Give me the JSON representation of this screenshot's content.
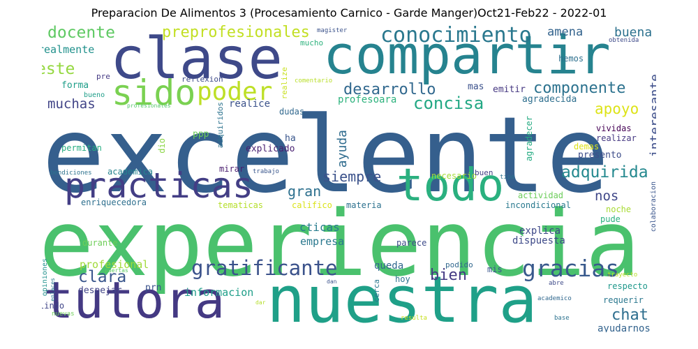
{
  "title": "Preparacion De Alimentos 3 (Procesamiento Carnico - Garde Manger)Oct21-Feb22 - 2022-01",
  "words": [
    {
      "text": "excelente",
      "color": "#355f8d"
    },
    {
      "text": "experiencia",
      "color": "#4ac16d"
    },
    {
      "text": "nuestra",
      "color": "#1fa088"
    },
    {
      "text": "compartir",
      "color": "#26838f"
    },
    {
      "text": "clase",
      "color": "#3e4989"
    },
    {
      "text": "tutora",
      "color": "#443983"
    },
    {
      "text": "todo",
      "color": "#2ab07f"
    },
    {
      "text": "practicas",
      "color": "#433e85"
    },
    {
      "text": "sido",
      "color": "#7ad151"
    },
    {
      "text": "poder",
      "color": "#bddf26"
    },
    {
      "text": "conocimiento",
      "color": "#2a788e"
    },
    {
      "text": "gratificante",
      "color": "#3b528b"
    },
    {
      "text": "gracias",
      "color": "#38598c"
    },
    {
      "text": "desarrollo",
      "color": "#31688e"
    },
    {
      "text": "componente",
      "color": "#2c728e"
    },
    {
      "text": "concisa",
      "color": "#22a884"
    },
    {
      "text": "adquirida",
      "color": "#23888e"
    },
    {
      "text": "siempre",
      "color": "#3b528b"
    },
    {
      "text": "apoyo",
      "color": "#dde318"
    },
    {
      "text": "clara",
      "color": "#39568c"
    },
    {
      "text": "bien",
      "color": "#443a83"
    },
    {
      "text": "chat",
      "color": "#2e6e8e"
    },
    {
      "text": "docente",
      "color": "#5ec962"
    },
    {
      "text": "este",
      "color": "#95d840"
    },
    {
      "text": "preprofesionales",
      "color": "#c2df23"
    },
    {
      "text": "muchas",
      "color": "#414487"
    },
    {
      "text": "amena",
      "color": "#33638d"
    },
    {
      "text": "buena",
      "color": "#2c718e"
    },
    {
      "text": "gran",
      "color": "#2d708e"
    },
    {
      "text": "nos",
      "color": "#3f4788"
    },
    {
      "text": "realmente",
      "color": "#21918c"
    },
    {
      "text": "ayuda",
      "color": "#2f6c8e"
    },
    {
      "text": "interesante",
      "color": "#3d4e8a"
    },
    {
      "text": "profesional",
      "color": "#a0da39"
    },
    {
      "text": "informacion",
      "color": "#1f9e89"
    },
    {
      "text": "empresa",
      "color": "#2a788e"
    },
    {
      "text": "cticas",
      "color": "#287d8e"
    },
    {
      "text": "queda",
      "color": "#31688e"
    },
    {
      "text": "ayudarnos",
      "color": "#33638d"
    },
    {
      "text": "explica",
      "color": "#3e4989"
    },
    {
      "text": "dispuesta",
      "color": "#3e4a89"
    },
    {
      "text": "forma",
      "color": "#1f9e89"
    },
    {
      "text": "realice",
      "color": "#3b528b"
    },
    {
      "text": "profesoara",
      "color": "#2db27d"
    },
    {
      "text": "emitir",
      "color": "#453781"
    },
    {
      "text": "agradecida",
      "color": "#2e6f8e"
    },
    {
      "text": "mas",
      "color": "#3b518b"
    },
    {
      "text": "presento",
      "color": "#3d4d8a"
    },
    {
      "text": "explicado",
      "color": "#482071"
    },
    {
      "text": "academica",
      "color": "#25838e"
    },
    {
      "text": "enriquecedora",
      "color": "#2e6f8e"
    },
    {
      "text": "permitan",
      "color": "#26ad81"
    },
    {
      "text": "mirar",
      "color": "#481b6d"
    },
    {
      "text": "materia",
      "color": "#2c718e"
    },
    {
      "text": "necesario",
      "color": "#a5db36"
    },
    {
      "text": "actividad",
      "color": "#6ccd5a"
    },
    {
      "text": "incondicional",
      "color": "#29798e"
    },
    {
      "text": "tematicas",
      "color": "#b5de2b"
    },
    {
      "text": "califico",
      "color": "#dae319"
    },
    {
      "text": "durante",
      "color": "#6ece58"
    },
    {
      "text": "mis",
      "color": "#39558c"
    },
    {
      "text": "hoy",
      "color": "#2c728e"
    },
    {
      "text": "despejar",
      "color": "#414487"
    },
    {
      "text": "respecto",
      "color": "#1f988b"
    },
    {
      "text": "requerir",
      "color": "#2a778e"
    },
    {
      "text": "lindo",
      "color": "#404588"
    },
    {
      "text": "vividas",
      "color": "#440154"
    },
    {
      "text": "realizar",
      "color": "#453882"
    },
    {
      "text": "demas",
      "color": "#dde318"
    },
    {
      "text": "ha",
      "color": "#39568c"
    },
    {
      "text": "ppp",
      "color": "#6ece58"
    },
    {
      "text": "dio",
      "color": "#8bd646"
    },
    {
      "text": "dudas",
      "color": "#31688e"
    },
    {
      "text": "hemos",
      "color": "#2d708e"
    },
    {
      "text": "bueno",
      "color": "#1f9e89"
    },
    {
      "text": "pre",
      "color": "#443983"
    },
    {
      "text": "reflexion",
      "color": "#3e4a89"
    },
    {
      "text": "mucho",
      "color": "#2db27d"
    },
    {
      "text": "magister",
      "color": "#3b528b"
    },
    {
      "text": "obtenida",
      "color": "#3e4a89"
    },
    {
      "text": "comentario",
      "color": "#b8de29"
    },
    {
      "text": "profesionales",
      "color": "#52c569"
    },
    {
      "text": "realize",
      "color": "#c8e020"
    },
    {
      "text": "adquiridos",
      "color": "#2c728e"
    },
    {
      "text": "agradecer",
      "color": "#25ab82"
    },
    {
      "text": "buen",
      "color": "#433e85"
    },
    {
      "text": "tipo",
      "color": "#2c728e"
    },
    {
      "text": "noche",
      "color": "#a8db34"
    },
    {
      "text": "pude",
      "color": "#2ab07f"
    },
    {
      "text": "parece",
      "color": "#3e4c8a"
    },
    {
      "text": "podido",
      "color": "#31688e"
    },
    {
      "text": "prn",
      "color": "#3b528b"
    },
    {
      "text": "cerca",
      "color": "#2a788e"
    },
    {
      "text": "dan",
      "color": "#3b528b"
    },
    {
      "text": "dar",
      "color": "#b5de2b"
    },
    {
      "text": "resulta",
      "color": "#c8e020"
    },
    {
      "text": "base",
      "color": "#2c728e"
    },
    {
      "text": "academico",
      "color": "#31688e"
    },
    {
      "text": "abre",
      "color": "#3e4a89"
    },
    {
      "text": "trayecto",
      "color": "#b8de29"
    },
    {
      "text": "colaboracion",
      "color": "#39558c"
    },
    {
      "text": "bendiciones",
      "color": "#2c728e"
    },
    {
      "text": "trabajo",
      "color": "#39568c"
    },
    {
      "text": "opiniones",
      "color": "#21918c"
    },
    {
      "text": "enlaces",
      "color": "#2a788e"
    },
    {
      "text": "puertas",
      "color": "#5ec962"
    },
    {
      "text": "nuevas",
      "color": "#6ece58"
    }
  ]
}
